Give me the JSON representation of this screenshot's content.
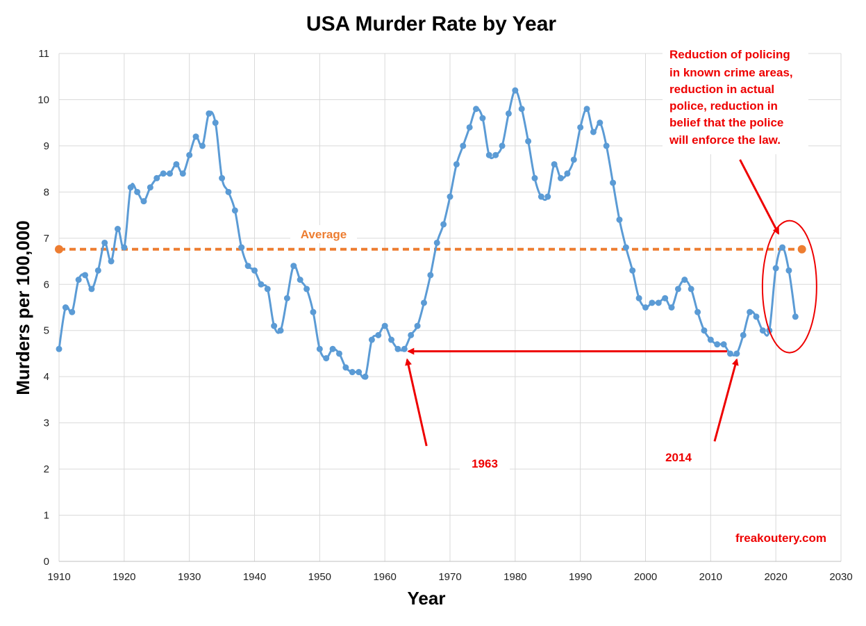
{
  "chart_data": {
    "type": "line",
    "title": "USA Murder Rate by Year",
    "xlabel": "Year",
    "ylabel": "Murders per 100,000",
    "xlim": [
      1910,
      2030
    ],
    "ylim": [
      0,
      11
    ],
    "xticks": [
      1910,
      1920,
      1930,
      1940,
      1950,
      1960,
      1970,
      1980,
      1990,
      2000,
      2010,
      2020,
      2030
    ],
    "yticks": [
      0,
      1,
      2,
      3,
      4,
      5,
      6,
      7,
      8,
      9,
      10,
      11
    ],
    "grid": true,
    "series": [
      {
        "name": "Murder rate",
        "color": "#5b9bd5",
        "x": [
          1910,
          1911,
          1912,
          1913,
          1914,
          1915,
          1916,
          1917,
          1918,
          1919,
          1920,
          1921,
          1922,
          1923,
          1924,
          1925,
          1926,
          1927,
          1928,
          1929,
          1930,
          1931,
          1932,
          1933,
          1934,
          1935,
          1936,
          1937,
          1938,
          1939,
          1940,
          1941,
          1942,
          1943,
          1944,
          1945,
          1946,
          1947,
          1948,
          1949,
          1950,
          1951,
          1952,
          1953,
          1954,
          1955,
          1956,
          1957,
          1958,
          1959,
          1960,
          1961,
          1962,
          1963,
          1964,
          1965,
          1966,
          1967,
          1968,
          1969,
          1970,
          1971,
          1972,
          1973,
          1974,
          1975,
          1976,
          1977,
          1978,
          1979,
          1980,
          1981,
          1982,
          1983,
          1984,
          1985,
          1986,
          1987,
          1988,
          1989,
          1990,
          1991,
          1992,
          1993,
          1994,
          1995,
          1996,
          1997,
          1998,
          1999,
          2000,
          2001,
          2002,
          2003,
          2004,
          2005,
          2006,
          2007,
          2008,
          2009,
          2010,
          2011,
          2012,
          2013,
          2014,
          2015,
          2016,
          2017,
          2018,
          2019,
          2020,
          2021,
          2022,
          2023
        ],
        "y": [
          4.6,
          5.5,
          5.4,
          6.1,
          6.2,
          5.9,
          6.3,
          6.9,
          6.5,
          7.2,
          6.8,
          8.1,
          8.0,
          7.8,
          8.1,
          8.3,
          8.4,
          8.4,
          8.6,
          8.4,
          8.8,
          9.2,
          9.0,
          9.7,
          9.5,
          8.3,
          8.0,
          7.6,
          6.8,
          6.4,
          6.3,
          6.0,
          5.9,
          5.1,
          5.0,
          5.7,
          6.4,
          6.1,
          5.9,
          5.4,
          4.6,
          4.4,
          4.6,
          4.5,
          4.2,
          4.1,
          4.1,
          4.0,
          4.8,
          4.9,
          5.1,
          4.8,
          4.6,
          4.6,
          4.9,
          5.1,
          5.6,
          6.2,
          6.9,
          7.3,
          7.9,
          8.6,
          9.0,
          9.4,
          9.8,
          9.6,
          8.8,
          8.8,
          9.0,
          9.7,
          10.2,
          9.8,
          9.1,
          8.3,
          7.9,
          7.9,
          8.6,
          8.3,
          8.4,
          8.7,
          9.4,
          9.8,
          9.3,
          9.5,
          9.0,
          8.2,
          7.4,
          6.8,
          6.3,
          5.7,
          5.5,
          5.6,
          5.6,
          5.7,
          5.5,
          5.9,
          6.1,
          5.9,
          5.4,
          5.0,
          4.8,
          4.7,
          4.7,
          4.5,
          4.5,
          4.9,
          5.4,
          5.3,
          5.0,
          5.0,
          6.35,
          6.8,
          6.3,
          5.3
        ]
      },
      {
        "name": "Average",
        "color": "#ed7d31",
        "value": 6.76,
        "x_range": [
          1910,
          2024
        ]
      }
    ],
    "annotations": {
      "average_label": "Average",
      "label_1963": "1963",
      "label_2014": "2014",
      "policing_note": [
        "Reduction of policing",
        "in known crime areas,",
        "reduction in actual",
        "police, reduction in",
        "belief that the police",
        "will enforce the law."
      ],
      "source": "freakoutery.com",
      "arrow_color": "#ee0000",
      "comparison_years": [
        1963,
        2014
      ],
      "comparison_value": 4.55
    }
  }
}
